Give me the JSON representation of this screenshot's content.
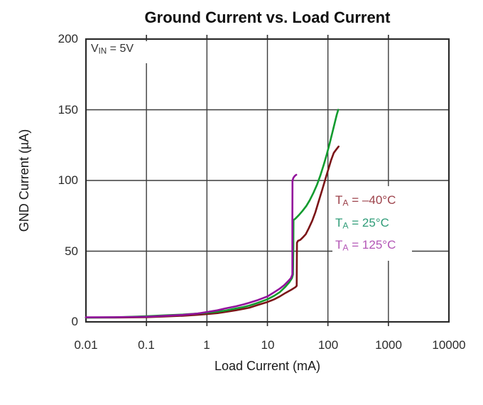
{
  "page": {
    "background": "#ffffff"
  },
  "chart_data": {
    "type": "line",
    "title": "Ground Current vs. Load Current",
    "xlabel": "Load Current (mA)",
    "ylabel": "GND Current (µA)",
    "x_scale": "log",
    "xlim": [
      0.01,
      10000
    ],
    "ylim": [
      0,
      200
    ],
    "grid": true,
    "x_tick_labels": [
      "0.01",
      "0.1",
      "1",
      "10",
      "100",
      "1000",
      "10000"
    ],
    "x_ticks_mA": [
      0.01,
      0.1,
      1,
      10,
      100,
      1000,
      10000
    ],
    "y_tick_labels": [
      "0",
      "50",
      "100",
      "150",
      "200"
    ],
    "y_ticks_uA": [
      0,
      50,
      100,
      150,
      200
    ],
    "axis_color": "#2b2b2b",
    "grid_color": "#3c3c3c",
    "annotation": {
      "prefix": "V",
      "sub": "IN",
      "rest": " = 5V"
    },
    "legend_position": "right-middle",
    "series": [
      {
        "name": "TA = -40°C",
        "legend": {
          "prefix": "T",
          "sub": "A",
          "rest": " = –40°C"
        },
        "color": "#7B1417",
        "legend_color": "#9D424B",
        "points": [
          [
            0.01,
            3
          ],
          [
            0.03,
            3
          ],
          [
            0.07,
            3.2
          ],
          [
            0.1,
            3.3
          ],
          [
            0.2,
            3.8
          ],
          [
            0.4,
            4.3
          ],
          [
            0.7,
            5
          ],
          [
            1,
            5.5
          ],
          [
            1.5,
            6.2
          ],
          [
            2,
            7
          ],
          [
            3,
            8.2
          ],
          [
            4,
            9.2
          ],
          [
            5,
            10
          ],
          [
            7,
            12
          ],
          [
            10,
            14
          ],
          [
            13,
            16
          ],
          [
            16,
            18
          ],
          [
            20,
            20.5
          ],
          [
            25,
            22.8
          ],
          [
            29,
            24.5
          ],
          [
            30.5,
            25.5
          ],
          [
            30.6,
            42
          ],
          [
            30.8,
            56
          ],
          [
            32,
            57.3
          ],
          [
            35,
            58
          ],
          [
            38,
            59.5
          ],
          [
            43,
            62
          ],
          [
            48,
            66
          ],
          [
            55,
            71.5
          ],
          [
            62,
            77.5
          ],
          [
            70,
            85
          ],
          [
            80,
            93
          ],
          [
            90,
            100.5
          ],
          [
            100,
            107
          ],
          [
            112,
            114
          ],
          [
            125,
            119.5
          ],
          [
            138,
            122
          ],
          [
            150,
            124
          ]
        ]
      },
      {
        "name": "TA = 25°C",
        "legend": {
          "prefix": "T",
          "sub": "A",
          "rest": " = 25°C"
        },
        "color": "#119B2E",
        "legend_color": "#2F9C78",
        "points": [
          [
            0.01,
            3
          ],
          [
            0.03,
            3.2
          ],
          [
            0.07,
            3.7
          ],
          [
            0.1,
            4
          ],
          [
            0.2,
            4.6
          ],
          [
            0.4,
            5.2
          ],
          [
            0.7,
            5.9
          ],
          [
            1,
            6.5
          ],
          [
            1.5,
            7.2
          ],
          [
            2,
            8
          ],
          [
            3,
            9.5
          ],
          [
            4,
            10.5
          ],
          [
            5,
            11.5
          ],
          [
            7,
            13.5
          ],
          [
            10,
            16
          ],
          [
            13,
            18.5
          ],
          [
            16,
            21
          ],
          [
            20,
            25
          ],
          [
            23,
            28
          ],
          [
            25.5,
            31
          ],
          [
            26.5,
            33.5
          ],
          [
            26.8,
            52
          ],
          [
            27,
            72
          ],
          [
            29,
            73
          ],
          [
            33,
            75.5
          ],
          [
            38,
            78.5
          ],
          [
            44,
            82
          ],
          [
            50,
            86
          ],
          [
            58,
            91.5
          ],
          [
            66,
            97
          ],
          [
            75,
            103.5
          ],
          [
            85,
            111
          ],
          [
            95,
            118
          ],
          [
            105,
            125
          ],
          [
            117,
            133
          ],
          [
            130,
            141
          ],
          [
            140,
            146.5
          ],
          [
            148,
            150
          ]
        ]
      },
      {
        "name": "TA = 125°C",
        "legend": {
          "prefix": "T",
          "sub": "A",
          "rest": " = 125°C"
        },
        "color": "#93119C",
        "legend_color": "#B356B6",
        "points": [
          [
            0.01,
            3.2
          ],
          [
            0.03,
            3.3
          ],
          [
            0.07,
            3.5
          ],
          [
            0.1,
            3.6
          ],
          [
            0.2,
            4.2
          ],
          [
            0.4,
            4.9
          ],
          [
            0.7,
            5.9
          ],
          [
            1,
            7
          ],
          [
            1.5,
            8.2
          ],
          [
            2,
            9.5
          ],
          [
            3,
            11
          ],
          [
            4,
            12.3
          ],
          [
            5,
            13.5
          ],
          [
            7,
            15.5
          ],
          [
            10,
            18
          ],
          [
            13,
            21
          ],
          [
            16,
            23.5
          ],
          [
            19,
            26
          ],
          [
            22,
            28.8
          ],
          [
            24.5,
            31
          ],
          [
            25.8,
            33.5
          ],
          [
            25.8,
            70
          ],
          [
            26,
            100
          ],
          [
            27,
            102
          ],
          [
            28.5,
            103.3
          ],
          [
            30,
            104
          ]
        ]
      }
    ]
  }
}
